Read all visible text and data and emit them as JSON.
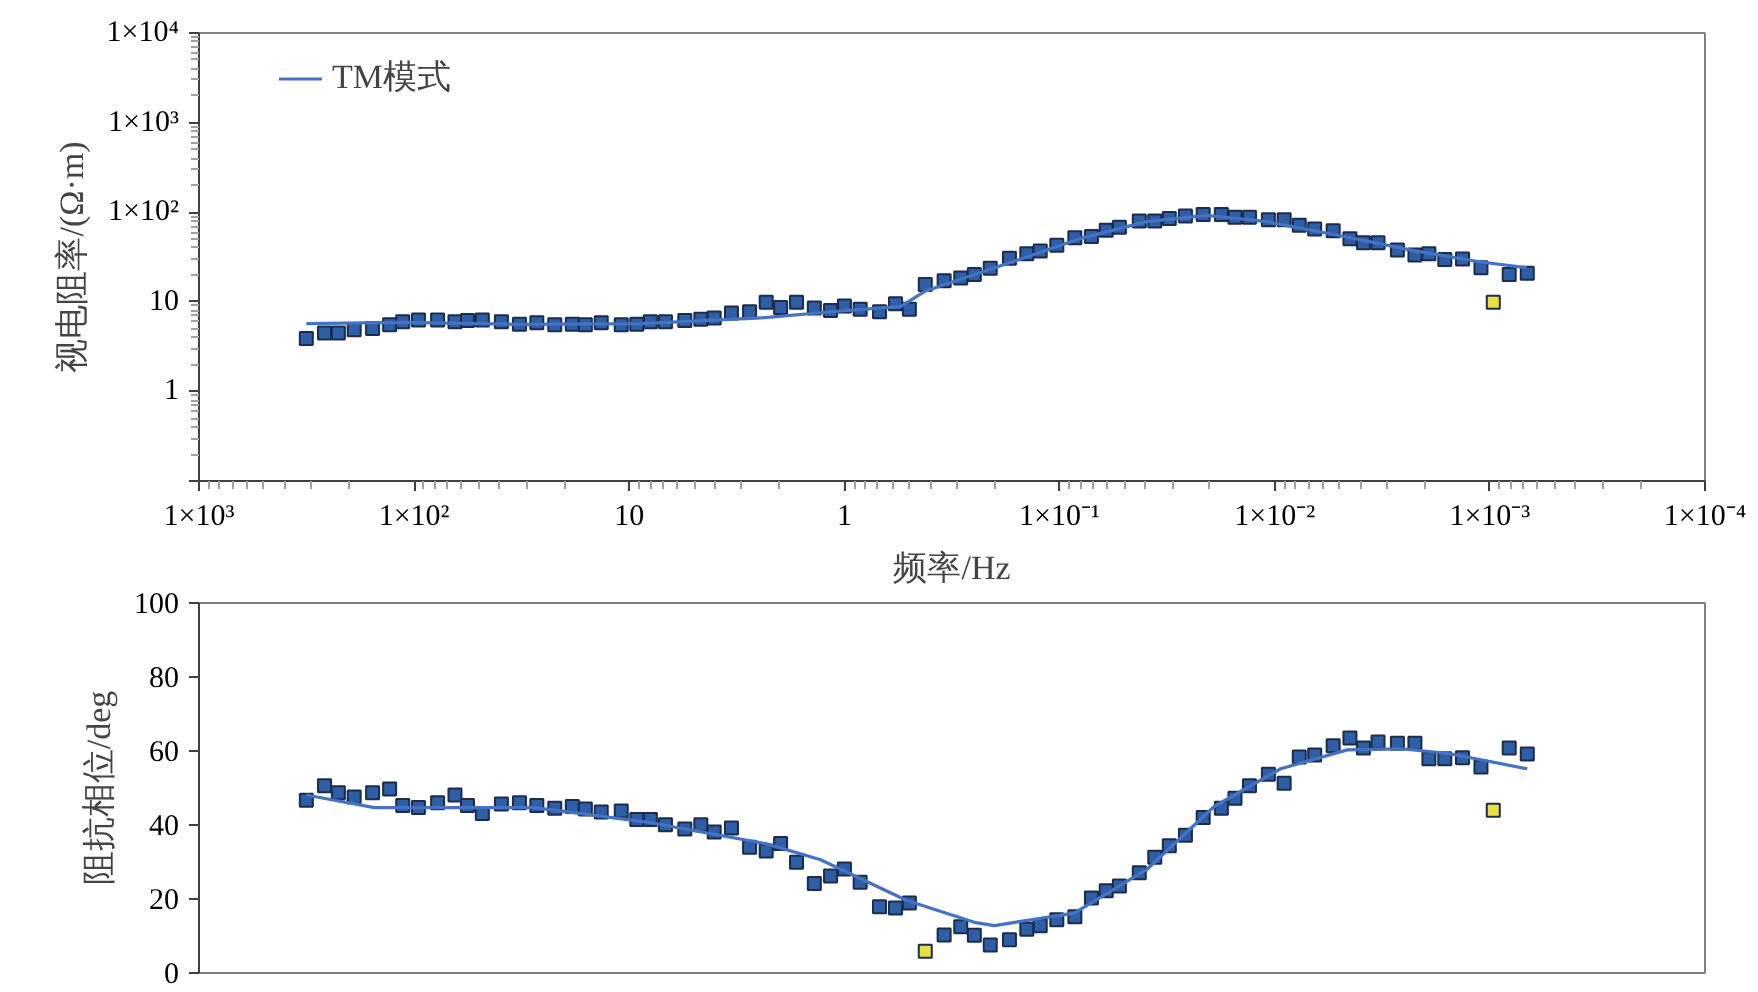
{
  "chart_data": [
    {
      "type": "scatter",
      "xlabel": "频率/Hz",
      "ylabel": "视电阻率/(Ω·m)",
      "log": "xy",
      "grid": false,
      "legend": "top left",
      "xlim": [
        1000,
        0.0001
      ],
      "xticks": [
        {
          "value": 1000,
          "label": "1×10³"
        },
        {
          "value": 100,
          "label": "1×10²"
        },
        10,
        1,
        {
          "value": 0.1,
          "label": "1×10⁻¹"
        },
        {
          "value": 0.01,
          "label": "1×10⁻²"
        },
        {
          "value": 0.001,
          "label": "1×10⁻³"
        },
        {
          "value": 0.0001,
          "label": "1×10⁻⁴"
        }
      ],
      "ylim": [
        0.1,
        10000
      ],
      "yticks": [
        {
          "value": 0.1,
          "label": null
        },
        1,
        10,
        {
          "value": 100,
          "label": "1×10²"
        },
        {
          "value": 1000,
          "label": "1×10³"
        },
        {
          "value": 10000,
          "label": "1×10⁴"
        }
      ],
      "x": [
        317,
        261,
        225,
        190,
        156,
        130,
        113,
        95.5,
        77.8,
        64.6,
        56.5,
        48.2,
        39.3,
        32.4,
        26.9,
        22.2,
        18.4,
        16.0,
        13.5,
        10.9,
        9.23,
        7.98,
        6.79,
        5.52,
        4.65,
        4.03,
        3.35,
        2.76,
        2.31,
        1.98,
        1.67,
        1.38,
        1.16,
        1.0,
        0.845,
        0.687,
        0.579,
        0.499,
        0.421,
        0.344,
        0.288,
        0.249,
        0.21,
        0.171,
        0.142,
        0.123,
        0.103,
        0.0849,
        0.0711,
        0.0607,
        0.0527,
        0.0426,
        0.0361,
        0.0309,
        0.026,
        0.0215,
        0.0177,
        0.0153,
        0.0131,
        0.0107,
        0.00904,
        0.00769,
        0.00652,
        0.00535,
        0.00447,
        0.00387,
        0.00331,
        0.00269,
        0.00223,
        0.00192,
        0.00162,
        0.00134,
        0.0011,
        0.000964,
        0.000813,
        0.00067
      ],
      "series": [
        {
          "marker": "square",
          "color": "#2d5ea6",
          "values": [
            3.89,
            4.49,
            4.49,
            4.87,
            5.04,
            5.54,
            5.98,
            6.28,
            6.28,
            5.98,
            6.19,
            6.28,
            5.98,
            5.62,
            5.82,
            5.54,
            5.62,
            5.54,
            5.82,
            5.54,
            5.62,
            5.98,
            5.98,
            6.19,
            6.4,
            6.59,
            7.5,
            7.76,
            9.86,
            8.66,
            9.86,
            8.53,
            7.98,
            8.96,
            8.25,
            7.76,
            9.53,
            8.25,
            15.6,
            17.2,
            18.4,
            20.2,
            23.7,
            30.6,
            34.3,
            37.0,
            42.8,
            51.9,
            53.6,
            62.8,
            68.1,
            79.8,
            79.8,
            85.3,
            90.8,
            94.0,
            94.0,
            87.9,
            87.9,
            82.5,
            82.5,
            71.5,
            64.9,
            61.9,
            50.4,
            45.7,
            45.7,
            37.8,
            33.2,
            34.3,
            29.7,
            30.1,
            24.0,
            null,
            20.2,
            20.8
          ]
        },
        {
          "marker": "square",
          "color": "#e8e040",
          "x": [
            0.000964
          ],
          "values": [
            9.86
          ]
        },
        {
          "type": "line",
          "name": "TM模式",
          "color": "#4472c4",
          "x": [
            317,
            115,
            31.9,
            8.83,
            2.44,
            1.04,
            0.547,
            0.423,
            0.163,
            0.0796,
            0.0394,
            0.0207,
            0.0109,
            0.00462,
            0.00223,
            0.0011,
            0.000675
          ],
          "values": [
            5.7,
            5.9,
            5.6,
            5.7,
            6.6,
            7.9,
            8.9,
            13.1,
            28.3,
            51.1,
            78.5,
            92.1,
            78.5,
            52.8,
            37.0,
            27.8,
            24.0
          ]
        }
      ]
    },
    {
      "type": "scatter",
      "ylabel": "阻抗相位/deg",
      "log": "x",
      "grid": false,
      "tick_labels": "y",
      "xlim": [
        1000,
        0.0001
      ],
      "ylim": [
        0,
        100
      ],
      "yticks": [
        0,
        20,
        40,
        60,
        80,
        100
      ],
      "x": [
        317,
        261,
        225,
        190,
        156,
        130,
        113,
        95.5,
        77.8,
        64.6,
        56.5,
        48.2,
        39.3,
        32.4,
        26.9,
        22.2,
        18.4,
        16.0,
        13.5,
        10.9,
        9.23,
        7.98,
        6.79,
        5.52,
        4.65,
        4.03,
        3.35,
        2.76,
        2.31,
        1.98,
        1.67,
        1.38,
        1.16,
        1.0,
        0.845,
        0.687,
        0.579,
        0.499,
        0.421,
        0.344,
        0.288,
        0.249,
        0.21,
        0.171,
        0.142,
        0.123,
        0.103,
        0.0849,
        0.0711,
        0.0607,
        0.0527,
        0.0426,
        0.0361,
        0.0309,
        0.026,
        0.0215,
        0.0177,
        0.0153,
        0.0131,
        0.0107,
        0.00904,
        0.00769,
        0.00652,
        0.00535,
        0.00447,
        0.00387,
        0.00331,
        0.00269,
        0.00223,
        0.00192,
        0.00162,
        0.00134,
        0.0011,
        0.000964,
        0.000813,
        0.00067
      ],
      "series": [
        {
          "marker": "square",
          "color": "#2d5ea6",
          "values": [
            46.7,
            50.6,
            48.7,
            47.6,
            48.7,
            49.7,
            45.3,
            44.7,
            46.0,
            48.1,
            45.3,
            43.1,
            45.7,
            46.0,
            45.3,
            44.5,
            45.0,
            44.3,
            43.5,
            43.8,
            41.5,
            41.5,
            40.1,
            38.9,
            40.1,
            38.1,
            39.2,
            34.0,
            33.0,
            35.0,
            29.9,
            24.2,
            26.2,
            28.1,
            24.5,
            17.9,
            17.6,
            18.9,
            null,
            10.3,
            12.5,
            10.2,
            7.6,
            9.0,
            11.8,
            12.8,
            14.4,
            15.2,
            20.3,
            22.2,
            23.5,
            27.1,
            31.3,
            34.4,
            37.2,
            42.0,
            44.5,
            47.2,
            50.6,
            53.7,
            51.3,
            58.4,
            58.9,
            61.4,
            63.5,
            60.8,
            62.4,
            62.1,
            62.1,
            57.9,
            57.9,
            58.2,
            55.7,
            null,
            60.8,
            59.2
          ]
        },
        {
          "marker": "square",
          "color": "#e8e040",
          "x": [
            0.421,
            0.000964
          ],
          "values": [
            5.9,
            44.0
          ]
        },
        {
          "type": "line",
          "color": "#4472c4",
          "x": [
            317,
            153,
            56.9,
            27.6,
            8.28,
            2.3,
            1.29,
            0.513,
            0.249,
            0.201,
            0.0855,
            0.0391,
            0.0191,
            0.00938,
            0.0046,
            0.0026,
            0.00158,
            0.00067
          ],
          "values": [
            48.1,
            44.7,
            44.7,
            44.7,
            40.8,
            34.9,
            30.6,
            19.6,
            13.7,
            12.8,
            16.2,
            28.1,
            45.0,
            55.2,
            60.3,
            60.6,
            59.4,
            55.2
          ]
        }
      ]
    }
  ]
}
